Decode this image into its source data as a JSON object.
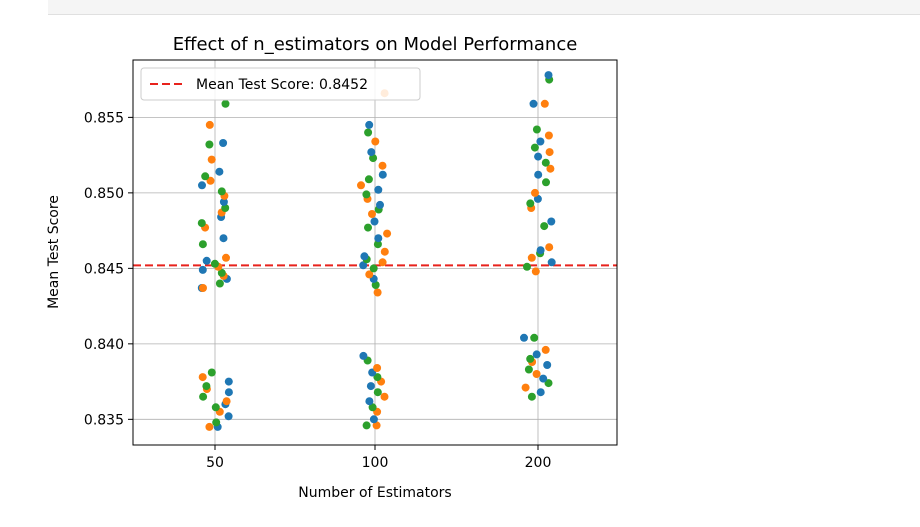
{
  "chart_data": {
    "type": "scatter",
    "title": "Effect of n_estimators on Model Performance",
    "xlabel": "Number of Estimators",
    "ylabel": "Mean Test Score",
    "categories": [
      "50",
      "100",
      "200"
    ],
    "ylim": [
      0.8333,
      0.8588
    ],
    "yticks": [
      0.835,
      0.84,
      0.845,
      0.85,
      0.855
    ],
    "ytick_labels": [
      "0.835",
      "0.840",
      "0.845",
      "0.850",
      "0.855"
    ],
    "grid": true,
    "legend_position": "top-left",
    "reference_line": {
      "label": "Mean Test Score: 0.8452",
      "y": 0.8452,
      "style": "dashed",
      "color": "#e8221c"
    },
    "series_colors": [
      "#1f77b4",
      "#ff7f0e",
      "#2ca02c"
    ],
    "points": {
      "50": [
        0.8345,
        0.8345,
        0.8348,
        0.8352,
        0.8355,
        0.8358,
        0.836,
        0.8362,
        0.8365,
        0.8368,
        0.837,
        0.8372,
        0.8375,
        0.8378,
        0.8381,
        0.8437,
        0.8437,
        0.844,
        0.8443,
        0.8445,
        0.8447,
        0.8449,
        0.8451,
        0.8453,
        0.8455,
        0.8457,
        0.8466,
        0.847,
        0.8477,
        0.848,
        0.8484,
        0.8487,
        0.849,
        0.8494,
        0.8498,
        0.8501,
        0.8505,
        0.8508,
        0.8511,
        0.8514,
        0.8522,
        0.8532,
        0.8533,
        0.8545,
        0.8559
      ],
      "100": [
        0.8346,
        0.8346,
        0.835,
        0.8355,
        0.8358,
        0.8362,
        0.8365,
        0.8368,
        0.8372,
        0.8375,
        0.8378,
        0.8381,
        0.8384,
        0.8389,
        0.8392,
        0.8434,
        0.8439,
        0.8443,
        0.8446,
        0.845,
        0.8452,
        0.8454,
        0.8456,
        0.8458,
        0.8461,
        0.8466,
        0.847,
        0.8473,
        0.8477,
        0.8481,
        0.8486,
        0.8489,
        0.8492,
        0.8496,
        0.8499,
        0.8502,
        0.8505,
        0.8509,
        0.8512,
        0.8518,
        0.8523,
        0.8527,
        0.8534,
        0.854,
        0.8545,
        0.8566
      ],
      "200": [
        0.8365,
        0.8368,
        0.8371,
        0.8374,
        0.8377,
        0.838,
        0.8383,
        0.8386,
        0.8388,
        0.839,
        0.8393,
        0.8396,
        0.8404,
        0.8404,
        0.8448,
        0.8451,
        0.8454,
        0.8457,
        0.846,
        0.8462,
        0.8464,
        0.8478,
        0.8481,
        0.849,
        0.8493,
        0.8496,
        0.85,
        0.8507,
        0.8512,
        0.8516,
        0.852,
        0.8524,
        0.8527,
        0.853,
        0.8534,
        0.8538,
        0.8542,
        0.8559,
        0.8559,
        0.8575,
        0.8578
      ]
    }
  }
}
